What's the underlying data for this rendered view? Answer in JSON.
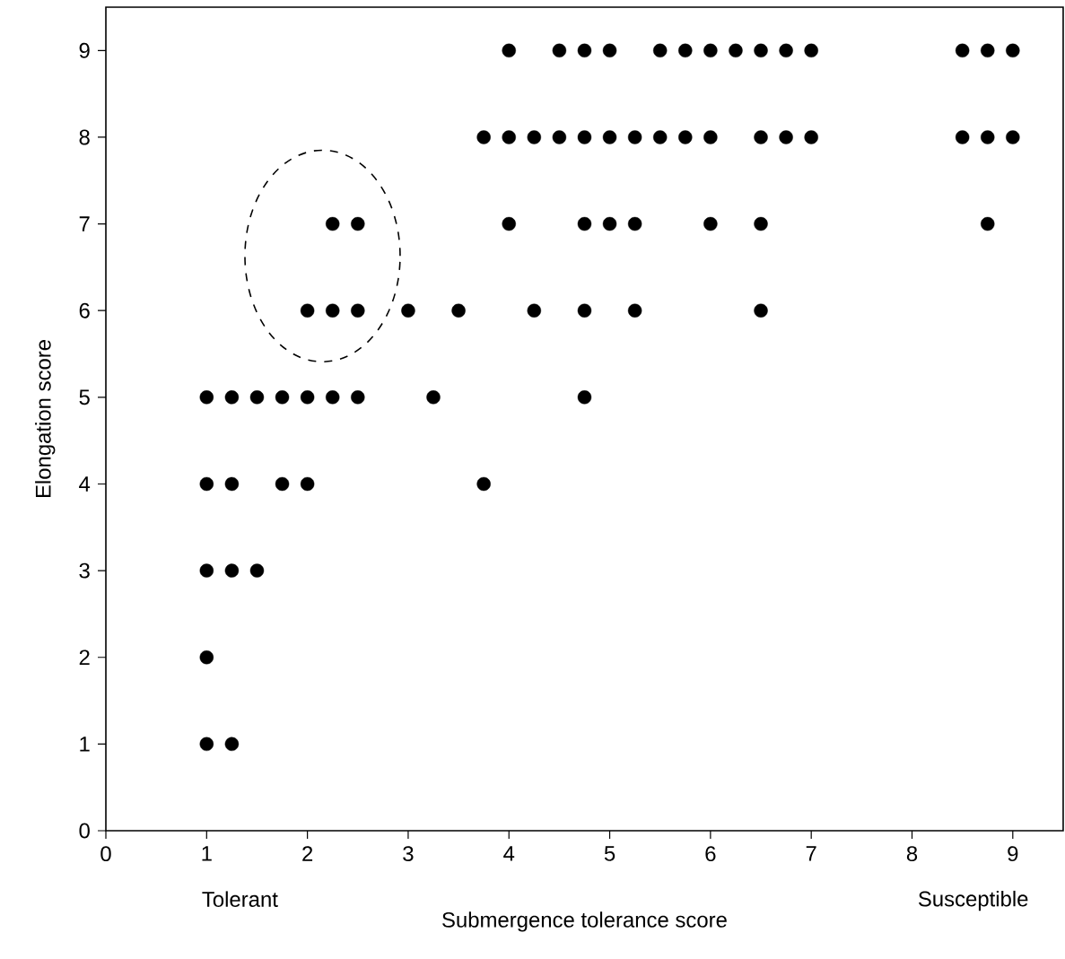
{
  "chart_data": {
    "type": "scatter",
    "xlabel": "Submergence tolerance score",
    "ylabel": "Elongation score",
    "annotations": [
      "Tolerant",
      "Susceptible"
    ],
    "xlim": [
      0,
      9.5
    ],
    "ylim": [
      0,
      9.5
    ],
    "xticks": [
      0,
      1,
      2,
      3,
      4,
      5,
      6,
      7,
      8,
      9
    ],
    "yticks": [
      0,
      1,
      2,
      3,
      4,
      5,
      6,
      7,
      8,
      9
    ],
    "grid": false,
    "series": [
      {
        "color": "#000000",
        "x": [
          4,
          4.5,
          4.75,
          5,
          5.5,
          5.75,
          6,
          6.25,
          6.5,
          6.75,
          7,
          8.5,
          8.75,
          9,
          3.75,
          4,
          4.25,
          4.5,
          4.75,
          5,
          5.25,
          5.5,
          5.75,
          6,
          6.5,
          6.75,
          7,
          8.5,
          8.75,
          9,
          2.25,
          2.5,
          4,
          4.75,
          5,
          5.25,
          6,
          6.5,
          8.75,
          2,
          2.25,
          2.5,
          3,
          3.5,
          4.25,
          4.75,
          5.25,
          6.5,
          1,
          1.25,
          1.5,
          1.75,
          2,
          2.25,
          2.5,
          3.25,
          4.75,
          1,
          1.25,
          1.75,
          2,
          3.75,
          1,
          1.25,
          1.5,
          1,
          1,
          1.25
        ],
        "values": [
          9,
          9,
          9,
          9,
          9,
          9,
          9,
          9,
          9,
          9,
          9,
          9,
          9,
          9,
          8,
          8,
          8,
          8,
          8,
          8,
          8,
          8,
          8,
          8,
          8,
          8,
          8,
          8,
          8,
          8,
          7,
          7,
          7,
          7,
          7,
          7,
          7,
          7,
          7,
          6,
          6,
          6,
          6,
          6,
          6,
          6,
          6,
          6,
          5,
          5,
          5,
          5,
          5,
          5,
          5,
          5,
          5,
          4,
          4,
          4,
          4,
          4,
          3,
          3,
          3,
          2,
          1,
          1
        ]
      }
    ]
  }
}
